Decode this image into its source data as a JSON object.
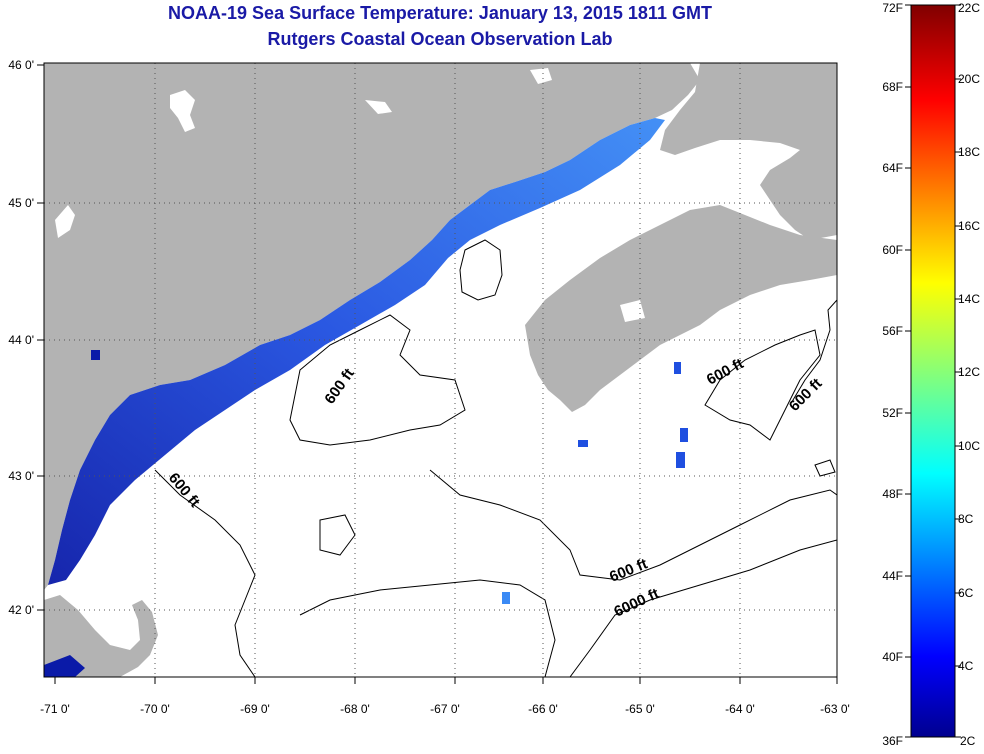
{
  "header": {
    "title_line1": "NOAA-19 Sea Surface Temperature:  January 13, 2015 1811 GMT",
    "title_line2": "Rutgers Coastal Ocean Observation Lab"
  },
  "axes": {
    "longitude_ticks": [
      "-71 0'",
      "-70 0'",
      "-69 0'",
      "-68 0'",
      "-67 0'",
      "-66 0'",
      "-65 0'",
      "-64 0'",
      "-63 0'"
    ],
    "latitude_ticks": [
      "46 0'",
      "45 0'",
      "44 0'",
      "43 0'",
      "42 0'"
    ]
  },
  "contours": {
    "labels": [
      "600 ft",
      "600 ft",
      "600 ft",
      "600 ft",
      "600 ft",
      "6000 ft"
    ]
  },
  "colorbar": {
    "fahrenheit_labels": [
      "72F",
      "68F",
      "64F",
      "60F",
      "56F",
      "52F",
      "48F",
      "44F",
      "40F",
      "36F"
    ],
    "celsius_labels": [
      "22C",
      "20C",
      "18C",
      "16C",
      "14C",
      "12C",
      "10C",
      "8C",
      "6C",
      "4C",
      "2C"
    ]
  },
  "colors": {
    "land": "#b3b3b3",
    "ocean_missing": "#ffffff",
    "title": "#1a1aa6",
    "sst_cold": "#0a1aa8",
    "sst_mid": "#2a6ef0"
  }
}
